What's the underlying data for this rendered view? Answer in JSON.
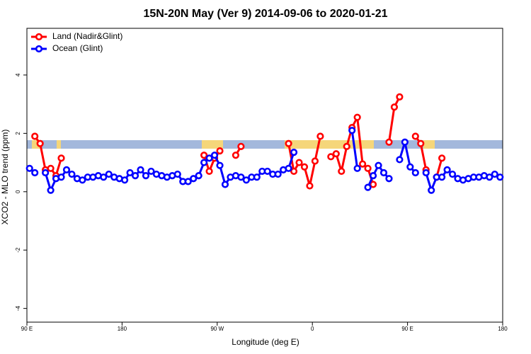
{
  "chart_data": {
    "type": "line",
    "title": "15N-20N May (Ver 9)   2014-09-06 to 2020-01-21",
    "x_label": "Longitude (deg E)",
    "y_label": "XCO2 - MLO trend (ppm)",
    "legend": "topleft",
    "x": [
      92.5,
      97.5,
      102.5,
      107.5,
      112.5,
      117.5,
      122.5,
      127.5,
      132.5,
      137.5,
      142.5,
      147.5,
      152.5,
      157.5,
      162.5,
      167.5,
      172.5,
      177.5,
      182.5,
      187.5,
      192.5,
      197.5,
      202.5,
      207.5,
      212.5,
      217.5,
      222.5,
      227.5,
      232.5,
      237.5,
      242.5,
      247.5,
      252.5,
      257.5,
      262.5,
      267.5,
      272.5,
      277.5,
      282.5,
      287.5,
      292.5,
      297.5,
      302.5,
      307.5,
      312.5,
      317.5,
      322.5,
      327.5,
      332.5,
      337.5,
      342.5,
      347.5,
      352.5,
      357.5,
      362.5,
      367.5,
      372.5,
      377.5,
      382.5,
      387.5,
      392.5,
      397.5,
      402.5,
      407.5,
      412.5,
      417.5,
      422.5,
      427.5,
      432.5,
      437.5,
      442.5,
      447.5,
      452.5,
      457.5,
      462.5,
      467.5,
      472.5,
      477.5,
      482.5,
      487.5,
      492.5,
      497.5,
      502.5,
      507.5,
      512.5,
      517.5,
      522.5,
      527.5,
      532.5,
      537.5
    ],
    "series": [
      {
        "name": "Land (Nadir&Glint)",
        "color": "#ff0000",
        "values": [
          null,
          1.9,
          1.65,
          0.75,
          0.8,
          0.55,
          1.15,
          null,
          null,
          null,
          null,
          null,
          null,
          null,
          null,
          null,
          null,
          null,
          null,
          null,
          null,
          null,
          null,
          null,
          null,
          null,
          null,
          null,
          null,
          null,
          null,
          null,
          null,
          1.25,
          0.7,
          1.15,
          1.4,
          null,
          null,
          1.25,
          1.55,
          null,
          null,
          null,
          null,
          null,
          null,
          null,
          null,
          1.65,
          0.7,
          1.0,
          0.85,
          0.2,
          1.05,
          1.9,
          null,
          1.2,
          1.3,
          0.7,
          1.55,
          2.2,
          2.55,
          0.95,
          0.8,
          0.25,
          null,
          null,
          1.7,
          2.9,
          3.25,
          null,
          null,
          1.9,
          1.65,
          0.75,
          null,
          0.5,
          1.15,
          null,
          null,
          null,
          null,
          null,
          null,
          null,
          null,
          null,
          null,
          null
        ]
      },
      {
        "name": "Ocean (Glint)",
        "color": "#0000ff",
        "values": [
          0.8,
          0.65,
          null,
          0.65,
          0.05,
          0.45,
          0.5,
          0.75,
          0.6,
          0.45,
          0.4,
          0.5,
          0.5,
          0.55,
          0.5,
          0.6,
          0.5,
          0.45,
          0.4,
          0.65,
          0.55,
          0.75,
          0.55,
          0.7,
          0.6,
          0.55,
          0.5,
          0.55,
          0.6,
          0.35,
          0.35,
          0.45,
          0.55,
          1.0,
          1.15,
          1.25,
          0.9,
          0.25,
          0.5,
          0.55,
          0.5,
          0.4,
          0.5,
          0.5,
          0.7,
          0.7,
          0.6,
          0.6,
          0.75,
          0.8,
          1.35,
          null,
          null,
          null,
          null,
          null,
          null,
          null,
          null,
          null,
          null,
          2.1,
          0.8,
          null,
          0.15,
          0.55,
          0.9,
          0.65,
          0.45,
          null,
          1.1,
          1.7,
          0.85,
          0.65,
          null,
          0.65,
          0.05,
          0.5,
          0.5,
          0.75,
          0.6,
          0.45,
          0.4,
          0.45,
          0.5,
          0.5,
          0.55,
          0.5,
          0.6,
          0.5
        ]
      }
    ],
    "xlim": [
      90,
      540
    ],
    "xticks": [
      {
        "value": 90,
        "label": "90 E"
      },
      180,
      {
        "value": 270,
        "label": "90 W"
      },
      {
        "value": 360,
        "label": "0"
      },
      {
        "value": 450,
        "label": "90 E"
      },
      {
        "value": 540,
        "label": "180"
      }
    ],
    "ylim": [
      -4.47,
      5.6
    ],
    "yticks": [
      -4,
      -2,
      0,
      2,
      4
    ]
  }
}
